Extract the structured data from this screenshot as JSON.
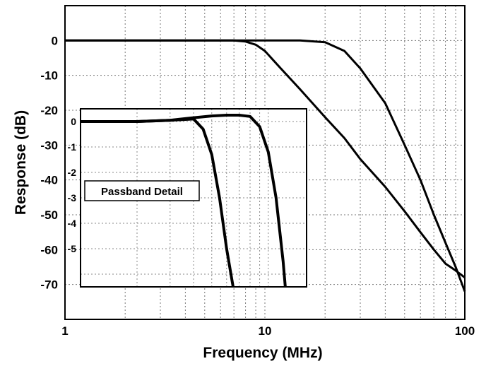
{
  "chart_data": [
    {
      "type": "line",
      "title": "",
      "xlabel": "Frequency (MHz)",
      "ylabel": "Response (dB)",
      "xscale": "log",
      "xlim": [
        1,
        100
      ],
      "ylim": [
        -80,
        10
      ],
      "x_ticks": [
        {
          "value": 1,
          "label": "1"
        },
        {
          "value": 10,
          "label": "10"
        },
        {
          "value": 100,
          "label": "100"
        }
      ],
      "y_ticks": [
        {
          "value": 0,
          "label": "0"
        },
        {
          "value": -10,
          "label": "-10"
        },
        {
          "value": -20,
          "label": "-20"
        },
        {
          "value": -30,
          "label": "-30"
        },
        {
          "value": -40,
          "label": "-40"
        },
        {
          "value": -50,
          "label": "-50"
        },
        {
          "value": -60,
          "label": "-60"
        },
        {
          "value": -70,
          "label": "-70"
        }
      ],
      "grid": true,
      "series": [
        {
          "x": [
            1,
            2,
            5,
            7,
            8,
            9,
            10,
            12,
            15,
            20,
            25,
            30,
            40,
            50,
            60,
            70,
            80,
            90,
            100
          ],
          "y": [
            0,
            0,
            0,
            0,
            -0.3,
            -1.2,
            -3,
            -8,
            -14,
            -22,
            -28,
            -34,
            -42,
            -49,
            -55,
            -60,
            -64,
            -66,
            -68
          ]
        },
        {
          "x": [
            1,
            5,
            10,
            15,
            20,
            25,
            30,
            40,
            50,
            60,
            70,
            80,
            90,
            100
          ],
          "y": [
            0,
            0,
            0,
            0,
            -0.5,
            -3,
            -8,
            -18,
            -30,
            -40,
            -50,
            -58,
            -65,
            -72
          ]
        }
      ]
    },
    {
      "type": "line",
      "title": "Passband Detail",
      "xscale": "log",
      "xlim": [
        1,
        16
      ],
      "ylim": [
        -6.5,
        0.5
      ],
      "y_ticks": [
        {
          "value": 0,
          "label": "0"
        },
        {
          "value": -1,
          "label": "-1"
        },
        {
          "value": -2,
          "label": "-2"
        },
        {
          "value": -3,
          "label": "-3"
        },
        {
          "value": -4,
          "label": "-4"
        },
        {
          "value": -5,
          "label": "-5"
        }
      ],
      "grid": true,
      "series": [
        {
          "x": [
            1,
            2,
            3,
            4,
            4.5,
            5,
            5.5,
            6,
            6.5,
            7
          ],
          "y": [
            0,
            0,
            0.05,
            0.1,
            -0.3,
            -1.3,
            -3,
            -5,
            -6.5,
            -8.5
          ]
        },
        {
          "x": [
            1,
            2,
            3,
            4,
            5,
            6,
            7,
            8,
            9,
            10,
            11,
            12,
            13
          ],
          "y": [
            0,
            0,
            0.05,
            0.15,
            0.22,
            0.25,
            0.25,
            0.2,
            -0.2,
            -1.2,
            -3,
            -5.5,
            -8.5
          ]
        }
      ]
    }
  ]
}
